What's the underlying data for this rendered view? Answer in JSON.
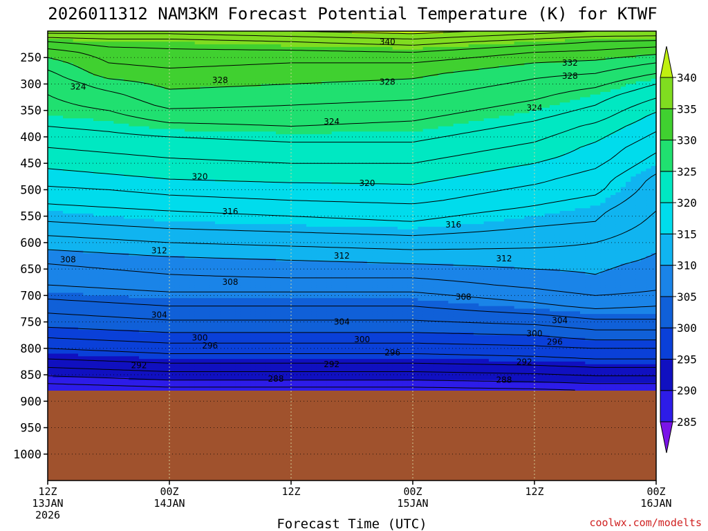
{
  "chart_data": {
    "type": "heatmap",
    "title": "2026011312 NAM3KM Forecast Potential Temperature (K) for KTWF",
    "xlabel": "Forecast Time (UTC)",
    "ylabel": "",
    "credit": "coolwx.com/modelts",
    "x_ticks": [
      {
        "hour": 0,
        "lines": [
          "12Z",
          "13JAN",
          "2026"
        ]
      },
      {
        "hour": 12,
        "lines": [
          "00Z",
          "14JAN"
        ]
      },
      {
        "hour": 24,
        "lines": [
          "12Z"
        ]
      },
      {
        "hour": 36,
        "lines": [
          "00Z",
          "15JAN"
        ]
      },
      {
        "hour": 48,
        "lines": [
          "12Z"
        ]
      },
      {
        "hour": 60,
        "lines": [
          "00Z",
          "16JAN"
        ]
      }
    ],
    "xlim": [
      0,
      60
    ],
    "y_ticks": [
      250,
      300,
      350,
      400,
      450,
      500,
      550,
      600,
      650,
      700,
      750,
      800,
      850,
      900,
      950,
      1000
    ],
    "ylim": [
      200,
      1050
    ],
    "grid": true,
    "surface_pressure": 880,
    "colorbar": {
      "levels": [
        285,
        290,
        295,
        300,
        305,
        310,
        315,
        320,
        325,
        330,
        335,
        340
      ],
      "labels": [
        "285",
        "290",
        "295",
        "300",
        "305",
        "310",
        "315",
        "320",
        "325",
        "330",
        "335",
        "340"
      ],
      "colors": [
        "#7a14e8",
        "#2d1ce8",
        "#1010c0",
        "#0a40d8",
        "#1060d8",
        "#1a84e8",
        "#10b4f0",
        "#00dcec",
        "#00e8c2",
        "#20e070",
        "#40d030",
        "#80dc20",
        "#c0f010"
      ]
    },
    "theta_profiles": {
      "pressure_levels": [
        880,
        860,
        840,
        820,
        800,
        780,
        760,
        740,
        720,
        700,
        680,
        660,
        640,
        620,
        600,
        580,
        560,
        540,
        520,
        500,
        480,
        460,
        440,
        420,
        400,
        380,
        360,
        340,
        320,
        300,
        280,
        260,
        240,
        220,
        200
      ],
      "series": [
        {
          "hour": 0,
          "values": [
            286,
            289,
            291.5,
            294,
            296,
            298,
            300,
            301.5,
            303,
            304.5,
            306,
            307,
            308,
            309.5,
            311,
            312.5,
            314,
            315,
            316.5,
            317.5,
            319,
            320,
            321,
            322,
            323,
            324,
            325,
            325.5,
            326,
            326.5,
            327.5,
            329,
            331,
            334,
            339
          ]
        },
        {
          "hour": 6,
          "values": [
            286.5,
            289.5,
            292,
            294.5,
            296.5,
            298.5,
            300.5,
            302,
            303.5,
            305,
            306.5,
            307.5,
            308.5,
            310,
            311.5,
            313,
            314.5,
            315.5,
            317,
            318,
            319.5,
            320.5,
            321.5,
            322.5,
            323.5,
            324.5,
            325.5,
            326.5,
            327.5,
            329,
            331,
            332,
            333,
            335,
            339
          ]
        },
        {
          "hour": 12,
          "values": [
            287,
            290,
            292.5,
            295,
            297,
            299,
            301,
            302.5,
            304,
            305.5,
            307,
            308,
            309,
            310.5,
            312,
            313.5,
            315,
            316,
            317.5,
            318.5,
            320,
            321,
            322,
            323,
            324,
            325.5,
            327,
            328.5,
            329.5,
            330.5,
            331.5,
            332.5,
            333.5,
            335,
            339
          ]
        },
        {
          "hour": 24,
          "values": [
            287,
            290,
            292.5,
            295,
            297,
            299,
            301,
            302.5,
            304,
            305.5,
            307,
            308.5,
            309.5,
            311,
            312.5,
            314,
            315.5,
            316.5,
            318,
            319,
            320.5,
            321.5,
            322.5,
            323.5,
            324.5,
            326,
            327,
            328,
            329,
            330,
            331,
            332,
            333.5,
            336,
            340
          ]
        },
        {
          "hour": 36,
          "values": [
            287,
            290,
            292.5,
            295,
            297,
            299,
            301,
            302.5,
            304,
            305.5,
            307,
            308.5,
            310,
            311.5,
            313,
            314.5,
            316,
            317,
            318.5,
            319.5,
            320.5,
            321.5,
            322.5,
            323.5,
            324.5,
            325.5,
            326.5,
            327.5,
            328.5,
            329.5,
            330.5,
            332,
            334,
            337,
            341
          ]
        },
        {
          "hour": 48,
          "values": [
            287.5,
            290.5,
            293,
            295.5,
            297.5,
            299.5,
            301.5,
            303.5,
            305.5,
            307,
            308.5,
            309.5,
            310.5,
            311.5,
            312.5,
            313.5,
            314.5,
            315.5,
            316.5,
            317.5,
            318.5,
            319.5,
            320.5,
            321.5,
            322.5,
            323.5,
            324.5,
            325.5,
            326.5,
            327.5,
            328.5,
            330,
            332,
            335,
            339
          ]
        },
        {
          "hour": 54,
          "values": [
            288,
            291,
            293.5,
            296,
            298,
            300.5,
            302.5,
            304.5,
            306.5,
            308,
            309.5,
            310,
            310.5,
            311.5,
            312,
            313,
            314,
            314.5,
            315.5,
            316.5,
            317,
            318,
            319,
            319.5,
            320.5,
            321.5,
            323,
            324,
            325,
            326.5,
            328,
            329.5,
            331.5,
            334,
            338
          ]
        },
        {
          "hour": 60,
          "values": [
            288,
            291,
            293.5,
            296,
            298,
            300.5,
            302.5,
            304.5,
            306,
            307.5,
            308.5,
            309,
            309.5,
            310,
            310.5,
            311,
            311.5,
            312,
            312.5,
            313,
            313.5,
            314.5,
            315.5,
            316.5,
            317.5,
            318.5,
            319.5,
            321,
            322.5,
            324,
            326,
            328,
            330.5,
            333.5,
            338
          ]
        }
      ]
    },
    "contour_labels": [
      {
        "text": "340",
        "hour": 33.5,
        "p": 220
      },
      {
        "text": "332",
        "hour": 51.5,
        "p": 260
      },
      {
        "text": "328",
        "hour": 51.5,
        "p": 285
      },
      {
        "text": "328",
        "hour": 17,
        "p": 293
      },
      {
        "text": "328",
        "hour": 33.5,
        "p": 296
      },
      {
        "text": "324",
        "hour": 3,
        "p": 305
      },
      {
        "text": "324",
        "hour": 48,
        "p": 345
      },
      {
        "text": "324",
        "hour": 28,
        "p": 371
      },
      {
        "text": "320",
        "hour": 15,
        "p": 475
      },
      {
        "text": "320",
        "hour": 31.5,
        "p": 488
      },
      {
        "text": "316",
        "hour": 18,
        "p": 541
      },
      {
        "text": "316",
        "hour": 40,
        "p": 566
      },
      {
        "text": "312",
        "hour": 11,
        "p": 615
      },
      {
        "text": "312",
        "hour": 29,
        "p": 625
      },
      {
        "text": "312",
        "hour": 45,
        "p": 630
      },
      {
        "text": "308",
        "hour": 2,
        "p": 632
      },
      {
        "text": "308",
        "hour": 18,
        "p": 675
      },
      {
        "text": "308",
        "hour": 41,
        "p": 703
      },
      {
        "text": "304",
        "hour": 11,
        "p": 737
      },
      {
        "text": "304",
        "hour": 29,
        "p": 750
      },
      {
        "text": "304",
        "hour": 50.5,
        "p": 747
      },
      {
        "text": "300",
        "hour": 15,
        "p": 780
      },
      {
        "text": "300",
        "hour": 31,
        "p": 783
      },
      {
        "text": "300",
        "hour": 48,
        "p": 772
      },
      {
        "text": "296",
        "hour": 16,
        "p": 795
      },
      {
        "text": "296",
        "hour": 34,
        "p": 808
      },
      {
        "text": "296",
        "hour": 50,
        "p": 788
      },
      {
        "text": "292",
        "hour": 9,
        "p": 832
      },
      {
        "text": "292",
        "hour": 28,
        "p": 830
      },
      {
        "text": "292",
        "hour": 47,
        "p": 826
      },
      {
        "text": "288",
        "hour": 22.5,
        "p": 858
      },
      {
        "text": "288",
        "hour": 45,
        "p": 860
      }
    ]
  }
}
